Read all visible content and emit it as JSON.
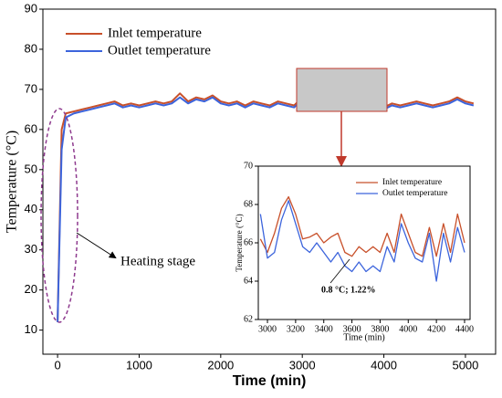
{
  "chart_data": [
    {
      "type": "line",
      "xlabel": "Time (min)",
      "ylabel": "Temperature (°C)",
      "xlim": [
        -180,
        5370
      ],
      "xticks": [
        0,
        1000,
        2000,
        3000,
        4000,
        5000
      ],
      "ylim": [
        4,
        90
      ],
      "yticks": [
        10,
        20,
        30,
        40,
        50,
        60,
        70,
        80,
        90
      ],
      "x": [
        0,
        50,
        100,
        200,
        300,
        400,
        500,
        600,
        700,
        800,
        900,
        1000,
        1100,
        1200,
        1300,
        1400,
        1500,
        1600,
        1700,
        1800,
        1900,
        2000,
        2100,
        2200,
        2300,
        2400,
        2500,
        2600,
        2700,
        2800,
        2900,
        3000,
        3100,
        3200,
        3300,
        3400,
        3500,
        3600,
        3700,
        3800,
        3900,
        4000,
        4100,
        4200,
        4300,
        4400,
        4500,
        4600,
        4700,
        4800,
        4900,
        5000,
        5100
      ],
      "series": [
        {
          "name": "Inlet temperature",
          "color": "#c8502a",
          "values": [
            12,
            60,
            64,
            64.5,
            65,
            65.5,
            66,
            66.5,
            67,
            66,
            66.5,
            66,
            66.5,
            67,
            66.5,
            67,
            69,
            67,
            68,
            67.5,
            68.5,
            67,
            66.5,
            67,
            66,
            67,
            66.5,
            66,
            67,
            66.5,
            66,
            68,
            66.5,
            66.5,
            66,
            66,
            65.5,
            65.5,
            66,
            65.5,
            66.5,
            65.5,
            66.5,
            66,
            66.5,
            67,
            66.5,
            66,
            66.5,
            67,
            68,
            67,
            66.5
          ]
        },
        {
          "name": "Outlet temperature",
          "color": "#3c64dc",
          "values": [
            12,
            55,
            63,
            64,
            64.5,
            65,
            65.5,
            66,
            66.5,
            65.5,
            66,
            65.5,
            66,
            66.5,
            66,
            66.5,
            68,
            66.5,
            67.5,
            67,
            68,
            66.5,
            66,
            66.5,
            65.5,
            66.5,
            66,
            65.5,
            66.5,
            66,
            65.5,
            67.5,
            66,
            66,
            65.5,
            65,
            65,
            65,
            65.5,
            65,
            66,
            65,
            66,
            65.5,
            66,
            66.5,
            66,
            65.5,
            66,
            66.5,
            67.5,
            66.5,
            66
          ]
        }
      ],
      "annotations": [
        "Heating stage"
      ]
    },
    {
      "type": "line",
      "xlabel": "Time (min)",
      "ylabel": "Temperature (°C)",
      "xlim": [
        2935,
        4439
      ],
      "xticks": [
        3000,
        3200,
        3400,
        3600,
        3800,
        4000,
        4200,
        4400
      ],
      "ylim": [
        62,
        70
      ],
      "yticks": [
        62,
        64,
        66,
        68,
        70
      ],
      "x": [
        2950,
        3000,
        3050,
        3100,
        3150,
        3200,
        3250,
        3300,
        3350,
        3400,
        3450,
        3500,
        3550,
        3600,
        3650,
        3700,
        3750,
        3800,
        3850,
        3900,
        3950,
        4000,
        4050,
        4100,
        4150,
        4200,
        4250,
        4300,
        4350,
        4400
      ],
      "series": [
        {
          "name": "Inlet temperature",
          "color": "#c8502a",
          "values": [
            66.2,
            65.5,
            66.5,
            67.8,
            68.4,
            67.5,
            66.2,
            66.3,
            66.5,
            66.0,
            66.3,
            66.5,
            65.5,
            65.3,
            65.8,
            65.5,
            65.8,
            65.5,
            66.5,
            65.5,
            67.5,
            66.5,
            65.5,
            65.3,
            66.8,
            65.3,
            67,
            65.5,
            67.5,
            66
          ]
        },
        {
          "name": "Outlet temperature",
          "color": "#3c64dc",
          "values": [
            67.5,
            65.2,
            65.5,
            67.2,
            68.2,
            67.0,
            65.8,
            65.5,
            66.0,
            65.5,
            65.0,
            65.5,
            64.8,
            64.5,
            65.0,
            64.5,
            64.8,
            64.5,
            65.8,
            65.0,
            67.0,
            66.0,
            65.2,
            65.0,
            66.5,
            64.0,
            66.5,
            65.0,
            66.8,
            65.5
          ]
        }
      ],
      "annotations": [
        "0.8 °C; 1.22%"
      ]
    }
  ]
}
